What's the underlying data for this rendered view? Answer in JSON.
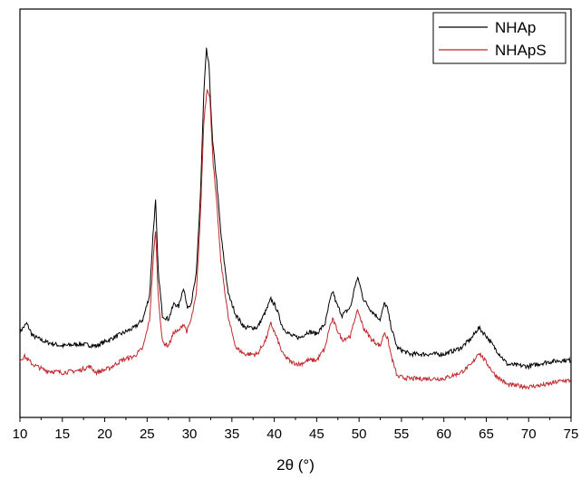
{
  "chart_data": {
    "type": "line",
    "title": "",
    "xlabel": "2θ (°)",
    "ylabel": "",
    "xlim": [
      10,
      75
    ],
    "ylim": [
      0,
      100
    ],
    "x_ticks": [
      10,
      15,
      20,
      25,
      30,
      35,
      40,
      45,
      50,
      55,
      60,
      65,
      70,
      75
    ],
    "y_ticks_shown": false,
    "grid": false,
    "legend_position": "top-right",
    "series": [
      {
        "name": "NHAp",
        "color": "#000000",
        "points": [
          [
            10,
            21
          ],
          [
            10.8,
            23
          ],
          [
            11.5,
            20
          ],
          [
            13,
            18.5
          ],
          [
            15,
            17.5
          ],
          [
            17,
            18
          ],
          [
            19,
            17.5
          ],
          [
            20.5,
            19
          ],
          [
            22,
            20.5
          ],
          [
            23.5,
            22
          ],
          [
            24.5,
            24
          ],
          [
            25.3,
            30
          ],
          [
            25.7,
            45
          ],
          [
            26.0,
            53
          ],
          [
            26.3,
            36
          ],
          [
            26.8,
            25
          ],
          [
            27.5,
            24
          ],
          [
            28.2,
            28
          ],
          [
            28.7,
            27
          ],
          [
            29.3,
            32
          ],
          [
            29.7,
            27
          ],
          [
            30.2,
            28
          ],
          [
            30.8,
            35
          ],
          [
            31.3,
            55
          ],
          [
            31.7,
            80
          ],
          [
            32.0,
            90
          ],
          [
            32.3,
            86
          ],
          [
            32.7,
            68
          ],
          [
            33.2,
            58
          ],
          [
            33.7,
            45
          ],
          [
            34.1,
            38
          ],
          [
            34.6,
            30
          ],
          [
            35.5,
            25
          ],
          [
            36.5,
            22
          ],
          [
            38,
            22
          ],
          [
            39.0,
            26
          ],
          [
            39.6,
            29
          ],
          [
            40.2,
            27
          ],
          [
            41,
            22
          ],
          [
            42,
            20
          ],
          [
            43,
            19.5
          ],
          [
            44,
            21
          ],
          [
            45,
            20.5
          ],
          [
            46,
            23
          ],
          [
            46.5,
            28
          ],
          [
            46.9,
            31
          ],
          [
            47.3,
            28
          ],
          [
            48,
            25
          ],
          [
            49,
            27
          ],
          [
            49.6,
            33
          ],
          [
            49.9,
            34
          ],
          [
            50.5,
            29
          ],
          [
            51.5,
            26
          ],
          [
            52.5,
            24
          ],
          [
            53.0,
            28
          ],
          [
            53.3,
            27
          ],
          [
            53.8,
            22
          ],
          [
            54.5,
            17
          ],
          [
            56,
            15.5
          ],
          [
            58,
            15.5
          ],
          [
            60,
            15.5
          ],
          [
            62,
            17
          ],
          [
            63.3,
            19.5
          ],
          [
            64.1,
            22
          ],
          [
            65,
            20
          ],
          [
            66,
            17
          ],
          [
            67.5,
            13
          ],
          [
            70,
            12.5
          ],
          [
            72,
            13.5
          ],
          [
            74,
            14
          ],
          [
            75,
            14
          ]
        ]
      },
      {
        "name": "NHApS",
        "color": "#c0282d",
        "points": [
          [
            10,
            14
          ],
          [
            10.5,
            15
          ],
          [
            11.5,
            13
          ],
          [
            13,
            11.5
          ],
          [
            15,
            11
          ],
          [
            17,
            11.5
          ],
          [
            18.2,
            12.5
          ],
          [
            19,
            11
          ],
          [
            20.5,
            12
          ],
          [
            22,
            14
          ],
          [
            23.5,
            15
          ],
          [
            24.5,
            17
          ],
          [
            25.3,
            24
          ],
          [
            25.7,
            38
          ],
          [
            26.0,
            46
          ],
          [
            26.3,
            30
          ],
          [
            26.8,
            18.5
          ],
          [
            27.5,
            17.5
          ],
          [
            28.2,
            21
          ],
          [
            28.7,
            21
          ],
          [
            29.3,
            23
          ],
          [
            29.7,
            21
          ],
          [
            30.2,
            24
          ],
          [
            30.8,
            30
          ],
          [
            31.3,
            50
          ],
          [
            31.7,
            73
          ],
          [
            32.1,
            81
          ],
          [
            32.4,
            78
          ],
          [
            32.8,
            62
          ],
          [
            33.3,
            50
          ],
          [
            33.7,
            38
          ],
          [
            34.1,
            32
          ],
          [
            34.6,
            24
          ],
          [
            35.5,
            17
          ],
          [
            36.5,
            15.5
          ],
          [
            38,
            15.5
          ],
          [
            39.0,
            19
          ],
          [
            39.6,
            23
          ],
          [
            40.2,
            20
          ],
          [
            41,
            15.5
          ],
          [
            42,
            13.5
          ],
          [
            43,
            13
          ],
          [
            44,
            14
          ],
          [
            45,
            14
          ],
          [
            46,
            17
          ],
          [
            46.5,
            22
          ],
          [
            46.9,
            24
          ],
          [
            47.3,
            22
          ],
          [
            48,
            19
          ],
          [
            49,
            20
          ],
          [
            49.6,
            25
          ],
          [
            49.9,
            26
          ],
          [
            50.5,
            22
          ],
          [
            51.5,
            19
          ],
          [
            52.5,
            17.5
          ],
          [
            53.0,
            21
          ],
          [
            53.4,
            19
          ],
          [
            53.8,
            15
          ],
          [
            54.5,
            10
          ],
          [
            56,
            9.5
          ],
          [
            58,
            9.5
          ],
          [
            60,
            9.5
          ],
          [
            62,
            11
          ],
          [
            63.3,
            13
          ],
          [
            64.1,
            16
          ],
          [
            65,
            13.5
          ],
          [
            66,
            10.5
          ],
          [
            67.5,
            8
          ],
          [
            70,
            7.5
          ],
          [
            72,
            8
          ],
          [
            74,
            9
          ],
          [
            75,
            9
          ]
        ]
      }
    ]
  }
}
